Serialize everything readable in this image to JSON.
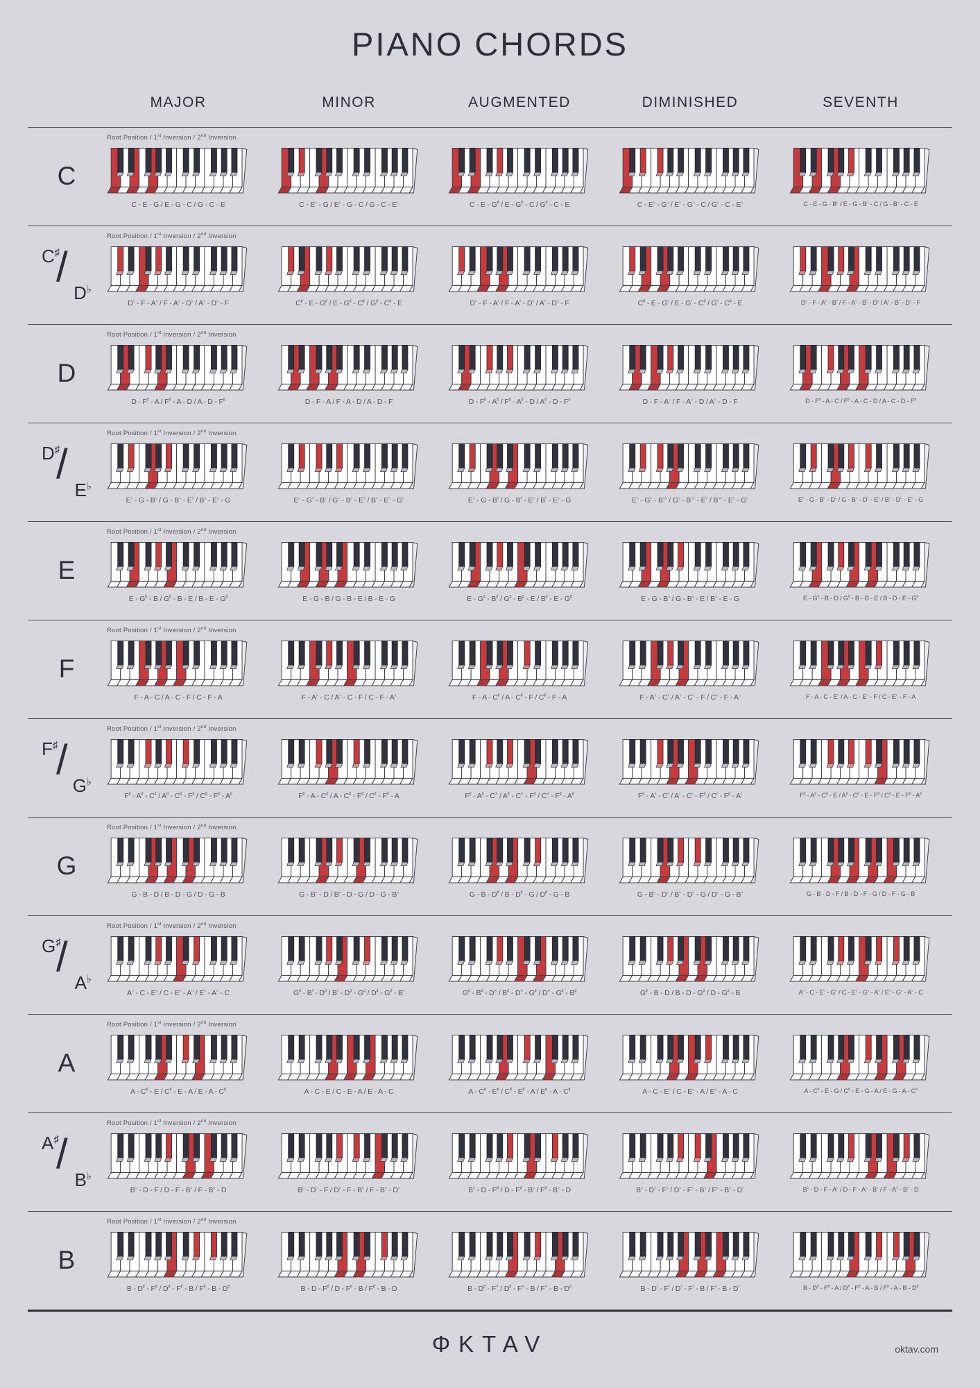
{
  "title": "PIANO CHORDS",
  "columns": [
    "MAJOR",
    "MINOR",
    "AUGMENTED",
    "DIMINISHED",
    "SEVENTH"
  ],
  "inversion_label": "Root Position  /  1st Inversion  /  2nd Inversion",
  "footer": {
    "logo": "ΦKTAV",
    "website": "oktav.com"
  },
  "colors": {
    "background": "#d7d7dd",
    "ink": "#2e2e3a",
    "red": "#c63c3e",
    "black_key": "#32323e",
    "note_text": "#55555f"
  },
  "rows": [
    {
      "label": {
        "type": "single",
        "main": "C"
      },
      "cells": [
        {
          "chords": "C - E - G / E - G - C / G - C - E",
          "keys": [
            0,
            4,
            7
          ]
        },
        {
          "chords": "C - E♭ - G / E♭ - G - C / G - C - E♭",
          "keys": [
            0,
            3,
            7
          ]
        },
        {
          "chords": "C - E - G♯ / E - G♯ - C / G♯ - C - E",
          "keys": [
            0,
            4,
            8
          ]
        },
        {
          "chords": "C - E♭ - G♭ / E♭ - G♭ - C / G♭ - C - E♭",
          "keys": [
            0,
            3,
            6
          ]
        },
        {
          "chords": "C - E - G - B♭ / E - G - B♭ - C / G - B♭ - C - E",
          "keys": [
            0,
            4,
            7,
            10
          ]
        }
      ]
    },
    {
      "label": {
        "type": "dual",
        "sharp": "C♯",
        "flat": "D♭"
      },
      "cells": [
        {
          "chords": "D♭ - F - A♭ / F - A♭ - D♭ / A♭ - D♭ - F",
          "keys": [
            1,
            5,
            8
          ]
        },
        {
          "chords": "C♯ - E - G♯ / E - G♯ - C♯ / G♯ - C♯ - E",
          "keys": [
            1,
            4,
            8
          ]
        },
        {
          "chords": "D♭ - F - A♮ / F - A♮ - D♭ / A♮ - D♭ - F",
          "keys": [
            1,
            5,
            9
          ]
        },
        {
          "chords": "C♯ - E - G♮ / E - G♮ - C♯ / G♮ - C♯ - E",
          "keys": [
            1,
            4,
            7
          ]
        },
        {
          "chords": "D♭ - F - A♭ - B♮ / F - A♭ - B♮ - D♭ / A♭ - B♮ - D♭ - F",
          "keys": [
            1,
            5,
            8,
            11
          ]
        }
      ]
    },
    {
      "label": {
        "type": "single",
        "main": "D"
      },
      "cells": [
        {
          "chords": "D - F♯ - A / F♯ - A - D / A - D - F♯",
          "keys": [
            2,
            6,
            9
          ]
        },
        {
          "chords": "D - F - A / F - A - D / A - D - F",
          "keys": [
            2,
            5,
            9
          ]
        },
        {
          "chords": "D - F♯ - A♯ / F♯ - A♯ - D / A♯ - D - F♯",
          "keys": [
            2,
            6,
            10
          ]
        },
        {
          "chords": "D - F - A♭ / F - A♭ - D / A♭ - D - F",
          "keys": [
            2,
            5,
            8
          ]
        },
        {
          "chords": "D - F♯ - A - C / F♯ - A - C - D / A - C - D - F♯",
          "keys": [
            2,
            6,
            9,
            12
          ]
        }
      ]
    },
    {
      "label": {
        "type": "dual",
        "sharp": "D♯",
        "flat": "E♭"
      },
      "cells": [
        {
          "chords": "E♭ - G - B♭ / G - B♭ - E♭ / B♭ - E♭ - G",
          "keys": [
            3,
            7,
            10
          ]
        },
        {
          "chords": "E♭ - G♭ - B♭ / G♭ - B♭ - E♭ / B♭ - E♭ - G♭",
          "keys": [
            3,
            6,
            10
          ]
        },
        {
          "chords": "E♭ - G - B♮ / G - B♮ - E♭ / B♮ - E♭ - G",
          "keys": [
            3,
            7,
            11
          ]
        },
        {
          "chords": "E♭ - G♭ - B♭♭ / G♭ - B♭♭ - E♭ / B♭♭ - E♭ - G♭",
          "keys": [
            3,
            6,
            9
          ]
        },
        {
          "chords": "E♭ - G - B♭ - D♭ / G - B♭ - D♭ - E♭ / B♭ - D♭ - E♭ - G",
          "keys": [
            3,
            7,
            10,
            13
          ]
        }
      ]
    },
    {
      "label": {
        "type": "single",
        "main": "E"
      },
      "cells": [
        {
          "chords": "E - G♯ - B / G♯ - B - E / B - E - G♯",
          "keys": [
            4,
            8,
            11
          ]
        },
        {
          "chords": "E - G - B / G - B - E / B - E - G",
          "keys": [
            4,
            7,
            11
          ]
        },
        {
          "chords": "E - G♯ - B♯ / G♯ - B♯ - E / B♯ - E - G♯",
          "keys": [
            4,
            8,
            12
          ]
        },
        {
          "chords": "E - G - B♭ / G - B♭ - E / B♭ - E - G",
          "keys": [
            4,
            7,
            10
          ]
        },
        {
          "chords": "E - G♯ - B - D / G♯ - B - D - E / B - D - E - G♯",
          "keys": [
            4,
            8,
            11,
            14
          ]
        }
      ]
    },
    {
      "label": {
        "type": "single",
        "main": "F"
      },
      "cells": [
        {
          "chords": "F - A - C / A - C - F / C - F - A",
          "keys": [
            5,
            9,
            12
          ]
        },
        {
          "chords": "F - A♭ - C / A♭ - C - F / C - F - A♭",
          "keys": [
            5,
            8,
            12
          ]
        },
        {
          "chords": "F - A - C♯ / A - C♯ - F / C♯ - F - A",
          "keys": [
            5,
            9,
            13
          ]
        },
        {
          "chords": "F - A♭ - C♭ / A♭ - C♭ - F / C♭ - F - A♭",
          "keys": [
            5,
            8,
            11
          ]
        },
        {
          "chords": "F - A - C - E♭ / A - C - E♭ - F / C - E♭ - F - A",
          "keys": [
            5,
            9,
            12,
            15
          ]
        }
      ]
    },
    {
      "label": {
        "type": "dual",
        "sharp": "F♯",
        "flat": "G♭"
      },
      "cells": [
        {
          "chords": "F♯ - A♯ - C♯ / A♯ - C♯ - F♯ / C♯ - F♯ - A♯",
          "keys": [
            6,
            10,
            13
          ]
        },
        {
          "chords": "F♯ - A - C♯ / A - C♯ - F♯ / C♯ - F♯ - A",
          "keys": [
            6,
            9,
            13
          ]
        },
        {
          "chords": "F♯ - A♯ - C× / A♯ - C× - F♯ / C× - F♯ - A♯",
          "keys": [
            6,
            10,
            14
          ]
        },
        {
          "chords": "F♯ - A♮ - C♮ / A♮ - C♮ - F♯ / C♮ - F♯ - A♮",
          "keys": [
            6,
            9,
            12
          ]
        },
        {
          "chords": "F♯ - A♯ - C♯ - E / A♯ - C♯ - E - F♯ / C♯ - E - F♯ - A♯",
          "keys": [
            6,
            10,
            13,
            16
          ]
        }
      ]
    },
    {
      "label": {
        "type": "single",
        "main": "G"
      },
      "cells": [
        {
          "chords": "G - B - D / B - D - G / D - G - B",
          "keys": [
            7,
            11,
            14
          ]
        },
        {
          "chords": "G - B♭ - D / B♭ - D - G / D - G - B♭",
          "keys": [
            7,
            10,
            14
          ]
        },
        {
          "chords": "G - B - D♯ / B - D♯ - G / D♯ - G - B",
          "keys": [
            7,
            11,
            15
          ]
        },
        {
          "chords": "G - B♭ - D♭ / B♭ - D♭ - G / D♭ - G - B♭",
          "keys": [
            7,
            10,
            13
          ]
        },
        {
          "chords": "G - B - D - F / B - D - F - G / D - F - G - B",
          "keys": [
            7,
            11,
            14,
            17
          ]
        }
      ]
    },
    {
      "label": {
        "type": "dual",
        "sharp": "G♯",
        "flat": "A♭"
      },
      "cells": [
        {
          "chords": "A♭ - C - E♭ / C - E♭ - A♭ / E♭ - A♭ - C",
          "keys": [
            8,
            12,
            15
          ]
        },
        {
          "chords": "G♯ - B♮ - D♯ / B♮ - D♯ - G♯ / D♯ - G♯ - B♮",
          "keys": [
            8,
            11,
            15
          ]
        },
        {
          "chords": "G♯ - B♯ - D× / B♯ - D× - G♯ / D× - G♯ - B♯",
          "keys": [
            8,
            12,
            16
          ]
        },
        {
          "chords": "G♯ - B - D / B - D - G♯ / D - G♯ - B",
          "keys": [
            8,
            11,
            14
          ]
        },
        {
          "chords": "A♭ - C - E♭ - G♭ / C - E♭ - G♭ - A♭ / E♭ - G♭ - A♭ - C",
          "keys": [
            8,
            12,
            15,
            18
          ]
        }
      ]
    },
    {
      "label": {
        "type": "single",
        "main": "A"
      },
      "cells": [
        {
          "chords": "A - C♯ - E / C♯ - E - A / E - A - C♯",
          "keys": [
            9,
            13,
            16
          ]
        },
        {
          "chords": "A - C - E / C - E - A / E - A - C",
          "keys": [
            9,
            12,
            16
          ]
        },
        {
          "chords": "A - C♯ - E♯ / C♯ - E♯ - A / E♯ - A - C♯",
          "keys": [
            9,
            13,
            17
          ]
        },
        {
          "chords": "A - C - E♭ / C - E♭ - A / E♭ - A - C",
          "keys": [
            9,
            12,
            15
          ]
        },
        {
          "chords": "A - C♯ - E - G / C♯ - E - G - A / E - G - A - C♯",
          "keys": [
            9,
            13,
            16,
            19
          ]
        }
      ]
    },
    {
      "label": {
        "type": "dual",
        "sharp": "A♯",
        "flat": "B♭"
      },
      "cells": [
        {
          "chords": "B♭ - D - F / D - F - B♭ / F - B♭ - D",
          "keys": [
            10,
            14,
            17
          ]
        },
        {
          "chords": "B♭ - D♭ - F / D♭ - F - B♭ / F - B♭ - D♭",
          "keys": [
            10,
            13,
            17
          ]
        },
        {
          "chords": "B♭ - D - F♯ / D - F♯ - B♭ / F♯ - B♭ - D",
          "keys": [
            10,
            14,
            18
          ]
        },
        {
          "chords": "B♭ - D♭ - F♭ / D♭ - F♭ - B♭ / F♭ - B♭ - D♭",
          "keys": [
            10,
            13,
            16
          ]
        },
        {
          "chords": "B♭ - D - F - A♭ / D - F - A♭ - B♭ / F - A♭ - B♭ - D",
          "keys": [
            10,
            14,
            17,
            20
          ]
        }
      ]
    },
    {
      "label": {
        "type": "single",
        "main": "B"
      },
      "cells": [
        {
          "chords": "B - D♯ - F♯ / D♯ - F♯ - B / F♯ - B - D♯",
          "keys": [
            11,
            15,
            18
          ]
        },
        {
          "chords": "B - D - F♯ / D - F♯ - B / F♯ - B - D",
          "keys": [
            11,
            14,
            18
          ]
        },
        {
          "chords": "B - D♯ - F× / D♯ - F× - B / F× - B - D♯",
          "keys": [
            11,
            15,
            19
          ]
        },
        {
          "chords": "B - D♮ - F♮ / D♮ - F♮ - B / F♮ - B - D♮",
          "keys": [
            11,
            14,
            17
          ]
        },
        {
          "chords": "B - D♯ - F♯ - A / D♯ - F♯ - A - B / F♯ - A - B - D♯",
          "keys": [
            11,
            15,
            18,
            21
          ]
        }
      ]
    }
  ]
}
